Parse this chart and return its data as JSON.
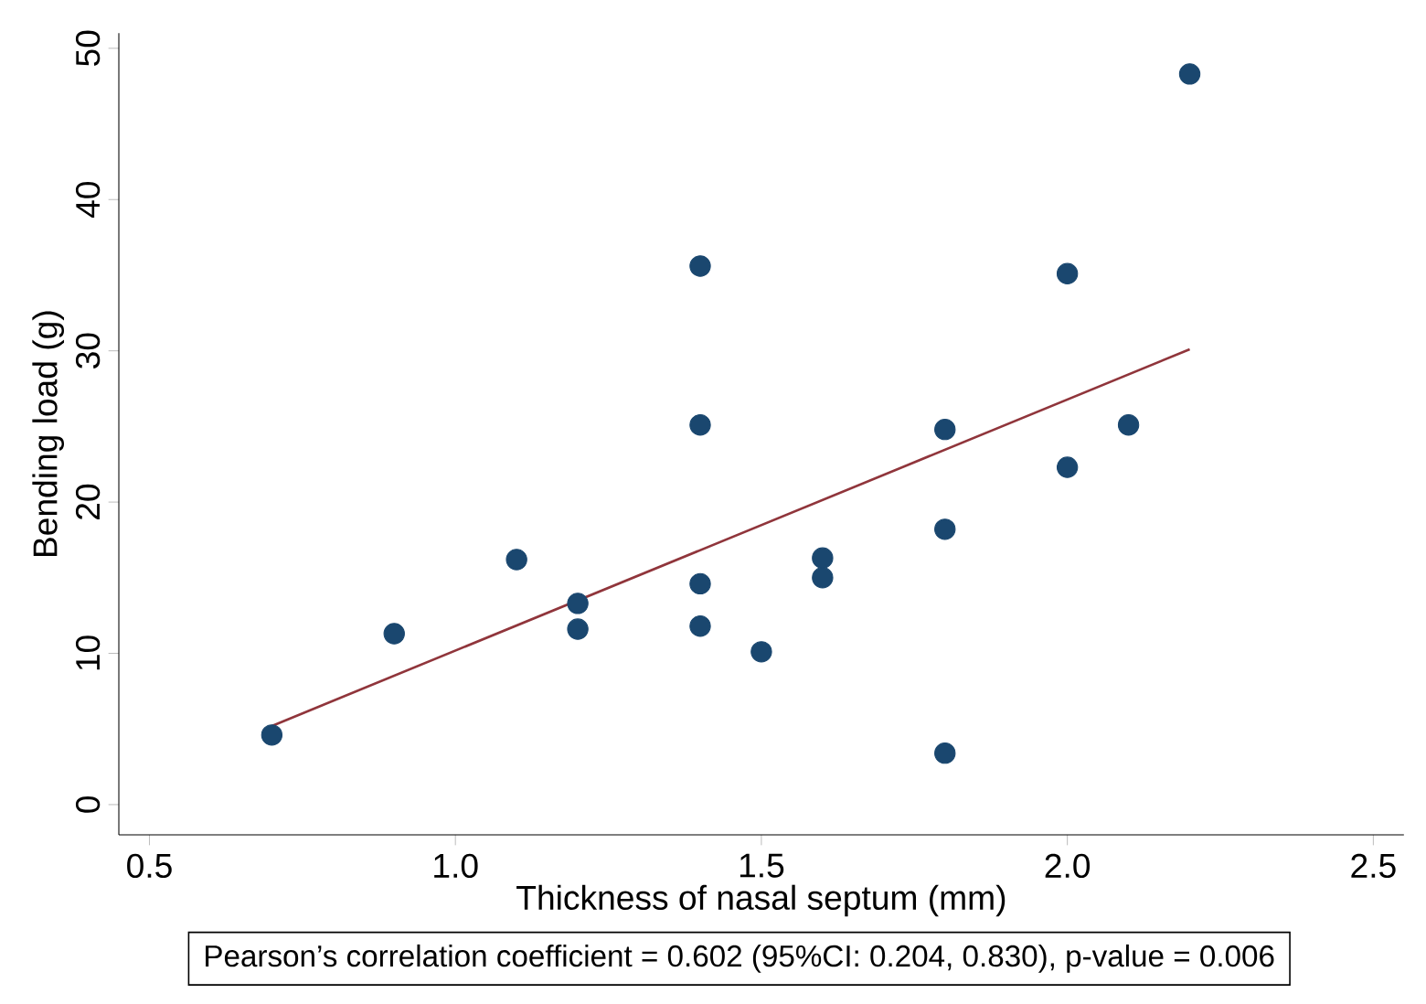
{
  "chart_data": {
    "type": "scatter",
    "xlabel": "Thickness of nasal septum (mm)",
    "ylabel": "Bending load (g)",
    "xlim": [
      0.45,
      2.55
    ],
    "ylim": [
      -2,
      51
    ],
    "xticks": [
      {
        "value": 0.5,
        "label": "0.5"
      },
      {
        "value": 1.0,
        "label": "1.0"
      },
      {
        "value": 1.5,
        "label": "1.5"
      },
      {
        "value": 2.0,
        "label": "2.0"
      },
      {
        "value": 2.5,
        "label": "2.5"
      }
    ],
    "yticks": [
      0,
      10,
      20,
      30,
      40,
      50
    ],
    "grid": false,
    "series": [
      {
        "marker": "circle",
        "color": "#1a476f",
        "x": [
          0.7,
          0.9,
          1.1,
          1.2,
          1.2,
          1.4,
          1.4,
          1.4,
          1.4,
          1.5,
          1.6,
          1.6,
          1.8,
          1.8,
          1.8,
          2.0,
          2.0,
          2.1,
          2.2
        ],
        "values": [
          4.6,
          11.3,
          16.2,
          13.3,
          11.6,
          35.6,
          25.1,
          14.6,
          11.8,
          10.1,
          16.3,
          15.0,
          24.8,
          18.2,
          3.4,
          35.1,
          22.3,
          25.1,
          48.3
        ]
      },
      {
        "type": "line",
        "marker": "none",
        "color": "#90353b",
        "x": [
          0.7,
          2.2
        ],
        "values": [
          5.2,
          30.1
        ]
      }
    ],
    "annotations": [
      "Pearson’s correlation coefficient = 0.602 (95%CI: 0.204, 0.830), p-value = 0.006"
    ]
  }
}
